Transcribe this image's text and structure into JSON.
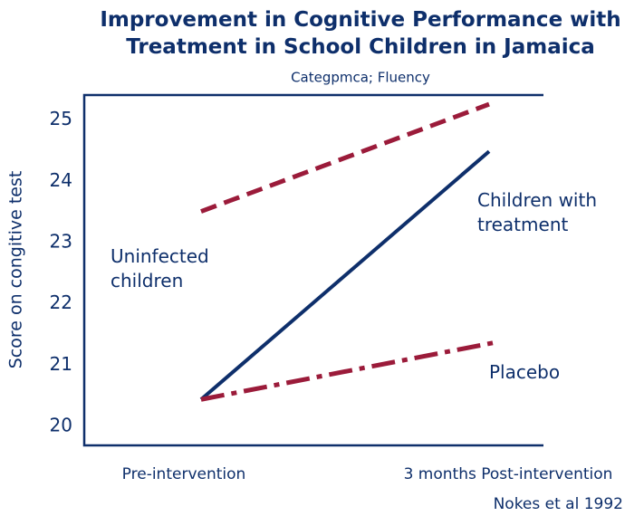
{
  "chart_data": {
    "type": "line",
    "title": "Improvement in Cognitive Performance with\nTreatment in School Children in Jamaica",
    "subtitle": "Categpmca; Fluency",
    "y_label": "Score on congitive test",
    "source": "Nokes et al 1992",
    "categories": [
      "Pre-intervention",
      "3 months Post-intervention"
    ],
    "series": [
      {
        "name": "Uninfected\nchildren",
        "color": "#9b1b3a",
        "style": "dashed",
        "values": [
          23.51,
          25.26
        ]
      },
      {
        "name": "Children with\ntreatment",
        "color": "#0e2f6b",
        "style": "solid",
        "values": [
          20.44,
          24.49
        ]
      },
      {
        "name": "Placebo",
        "color": "#9b1b3a",
        "style": "dashdot",
        "values": [
          20.44,
          21.38
        ]
      }
    ],
    "ylim": [
      19.69,
      25.41
    ],
    "yticks": [
      20,
      21,
      22,
      23,
      24,
      25
    ],
    "grid": false
  }
}
